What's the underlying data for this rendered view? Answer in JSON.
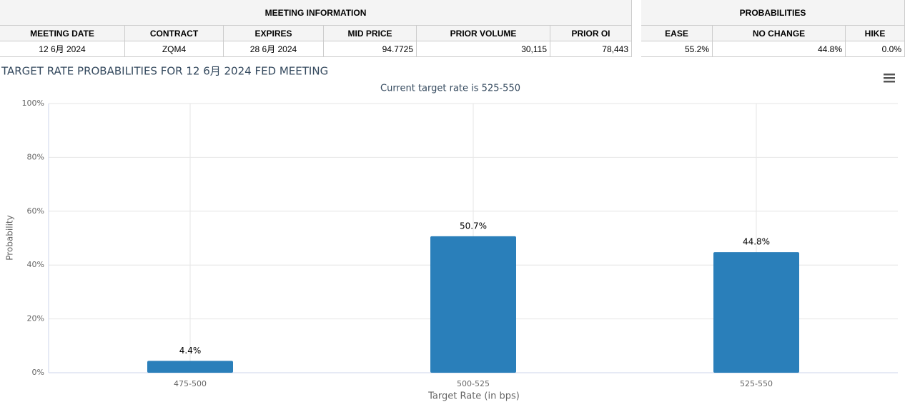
{
  "meeting_info": {
    "title": "MEETING INFORMATION",
    "headers": [
      "MEETING DATE",
      "CONTRACT",
      "EXPIRES",
      "MID PRICE",
      "PRIOR VOLUME",
      "PRIOR OI"
    ],
    "row": [
      "12 6月 2024",
      "ZQM4",
      "28 6月 2024",
      "94.7725",
      "30,115",
      "78,443"
    ]
  },
  "probabilities": {
    "title": "PROBABILITIES",
    "headers": [
      "EASE",
      "NO CHANGE",
      "HIKE"
    ],
    "row": [
      "55.2%",
      "44.8%",
      "0.0%"
    ]
  },
  "chart_data": {
    "type": "bar",
    "title": "TARGET RATE PROBABILITIES FOR 12 6月 2024 FED MEETING",
    "subtitle": "Current target rate is 525-550",
    "x_label": "Target Rate (in bps)",
    "y_label": "Probability",
    "categories": [
      "475-500",
      "500-525",
      "525-550"
    ],
    "values": [
      4.4,
      50.7,
      44.8
    ],
    "value_labels": [
      "4.4%",
      "50.7%",
      "44.8%"
    ],
    "color": "#2a7fba",
    "ylim": [
      0,
      100
    ],
    "yticks": [
      {
        "value": 0,
        "label": "0%"
      },
      {
        "value": 20,
        "label": "20%"
      },
      {
        "value": 40,
        "label": "40%"
      },
      {
        "value": 60,
        "label": "60%"
      },
      {
        "value": 80,
        "label": "80%"
      },
      {
        "value": 100,
        "label": "100%"
      }
    ],
    "grid": true
  }
}
